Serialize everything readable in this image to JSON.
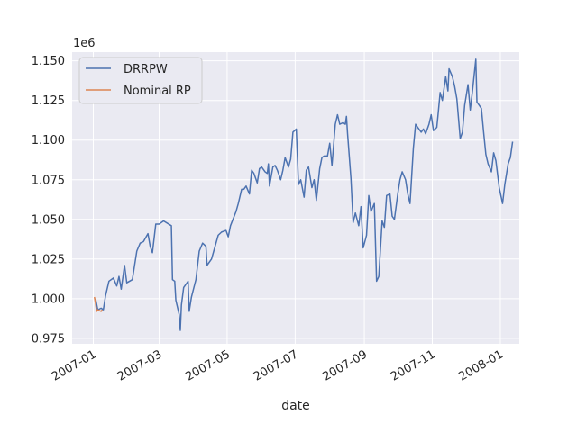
{
  "chart_data": {
    "type": "line",
    "title": "",
    "xlabel": "date",
    "ylabel": "",
    "y_offset_label": "1e6",
    "x_ticks": [
      "2007-01",
      "2007-03",
      "2007-05",
      "2007-07",
      "2007-09",
      "2007-11",
      "2008-01"
    ],
    "y_ticks": [
      "0.975",
      "1.000",
      "1.025",
      "1.050",
      "1.075",
      "1.100",
      "1.125",
      "1.150"
    ],
    "xlim": [
      "2006-12-13",
      "2008-01-18"
    ],
    "ylim": [
      0.9715,
      1.1555
    ],
    "grid": true,
    "legend_position": "top-left",
    "series": [
      {
        "name": "DRRPW",
        "color": "#4c72b0",
        "points": [
          [
            "2007-01-03",
            1.0
          ],
          [
            "2007-01-05",
            0.993
          ],
          [
            "2007-01-08",
            0.994
          ],
          [
            "2007-01-10",
            0.993
          ],
          [
            "2007-01-12",
            1.002
          ],
          [
            "2007-01-15",
            1.011
          ],
          [
            "2007-01-19",
            1.013
          ],
          [
            "2007-01-22",
            1.008
          ],
          [
            "2007-01-24",
            1.014
          ],
          [
            "2007-01-26",
            1.006
          ],
          [
            "2007-01-29",
            1.021
          ],
          [
            "2007-01-31",
            1.01
          ],
          [
            "2007-02-05",
            1.012
          ],
          [
            "2007-02-09",
            1.03
          ],
          [
            "2007-02-12",
            1.035
          ],
          [
            "2007-02-15",
            1.036
          ],
          [
            "2007-02-19",
            1.041
          ],
          [
            "2007-02-21",
            1.033
          ],
          [
            "2007-02-23",
            1.029
          ],
          [
            "2007-02-26",
            1.047
          ],
          [
            "2007-03-01",
            1.047
          ],
          [
            "2007-03-05",
            1.049
          ],
          [
            "2007-03-12",
            1.046
          ],
          [
            "2007-03-13",
            1.012
          ],
          [
            "2007-03-15",
            1.011
          ],
          [
            "2007-03-16",
            0.999
          ],
          [
            "2007-03-19",
            0.99
          ],
          [
            "2007-03-20",
            0.98
          ],
          [
            "2007-03-21",
            0.996
          ],
          [
            "2007-03-23",
            1.007
          ],
          [
            "2007-03-27",
            1.011
          ],
          [
            "2007-03-28",
            0.992
          ],
          [
            "2007-03-30",
            1.001
          ],
          [
            "2007-04-03",
            1.012
          ],
          [
            "2007-04-06",
            1.03
          ],
          [
            "2007-04-09",
            1.035
          ],
          [
            "2007-04-12",
            1.033
          ],
          [
            "2007-04-13",
            1.021
          ],
          [
            "2007-04-17",
            1.025
          ],
          [
            "2007-04-19",
            1.03
          ],
          [
            "2007-04-23",
            1.04
          ],
          [
            "2007-04-26",
            1.042
          ],
          [
            "2007-04-30",
            1.043
          ],
          [
            "2007-05-02",
            1.039
          ],
          [
            "2007-05-04",
            1.046
          ],
          [
            "2007-05-09",
            1.055
          ],
          [
            "2007-05-11",
            1.06
          ],
          [
            "2007-05-14",
            1.069
          ],
          [
            "2007-05-16",
            1.069
          ],
          [
            "2007-05-18",
            1.071
          ],
          [
            "2007-05-21",
            1.066
          ],
          [
            "2007-05-23",
            1.081
          ],
          [
            "2007-05-25",
            1.079
          ],
          [
            "2007-05-28",
            1.073
          ],
          [
            "2007-05-30",
            1.082
          ],
          [
            "2007-06-01",
            1.083
          ],
          [
            "2007-06-04",
            1.08
          ],
          [
            "2007-06-06",
            1.079
          ],
          [
            "2007-06-07",
            1.085
          ],
          [
            "2007-06-08",
            1.071
          ],
          [
            "2007-06-11",
            1.083
          ],
          [
            "2007-06-13",
            1.084
          ],
          [
            "2007-06-15",
            1.081
          ],
          [
            "2007-06-18",
            1.075
          ],
          [
            "2007-06-20",
            1.081
          ],
          [
            "2007-06-22",
            1.089
          ],
          [
            "2007-06-25",
            1.083
          ],
          [
            "2007-06-27",
            1.088
          ],
          [
            "2007-06-29",
            1.105
          ],
          [
            "2007-07-02",
            1.107
          ],
          [
            "2007-07-04",
            1.072
          ],
          [
            "2007-07-06",
            1.075
          ],
          [
            "2007-07-09",
            1.064
          ],
          [
            "2007-07-11",
            1.081
          ],
          [
            "2007-07-13",
            1.083
          ],
          [
            "2007-07-16",
            1.07
          ],
          [
            "2007-07-18",
            1.075
          ],
          [
            "2007-07-20",
            1.062
          ],
          [
            "2007-07-23",
            1.082
          ],
          [
            "2007-07-25",
            1.089
          ],
          [
            "2007-07-27",
            1.09
          ],
          [
            "2007-07-30",
            1.09
          ],
          [
            "2007-08-01",
            1.098
          ],
          [
            "2007-08-03",
            1.084
          ],
          [
            "2007-08-06",
            1.11
          ],
          [
            "2007-08-08",
            1.116
          ],
          [
            "2007-08-10",
            1.11
          ],
          [
            "2007-08-13",
            1.111
          ],
          [
            "2007-08-15",
            1.11
          ],
          [
            "2007-08-16",
            1.115
          ],
          [
            "2007-08-17",
            1.104
          ],
          [
            "2007-08-20",
            1.076
          ],
          [
            "2007-08-22",
            1.048
          ],
          [
            "2007-08-24",
            1.054
          ],
          [
            "2007-08-27",
            1.046
          ],
          [
            "2007-08-29",
            1.058
          ],
          [
            "2007-08-31",
            1.032
          ],
          [
            "2007-09-03",
            1.04
          ],
          [
            "2007-09-05",
            1.065
          ],
          [
            "2007-09-07",
            1.055
          ],
          [
            "2007-09-10",
            1.06
          ],
          [
            "2007-09-12",
            1.011
          ],
          [
            "2007-09-14",
            1.014
          ],
          [
            "2007-09-17",
            1.049
          ],
          [
            "2007-09-19",
            1.045
          ],
          [
            "2007-09-21",
            1.065
          ],
          [
            "2007-09-24",
            1.066
          ],
          [
            "2007-09-26",
            1.052
          ],
          [
            "2007-09-28",
            1.05
          ],
          [
            "2007-10-01",
            1.066
          ],
          [
            "2007-10-03",
            1.075
          ],
          [
            "2007-10-05",
            1.08
          ],
          [
            "2007-10-08",
            1.075
          ],
          [
            "2007-10-10",
            1.066
          ],
          [
            "2007-10-12",
            1.06
          ],
          [
            "2007-10-15",
            1.095
          ],
          [
            "2007-10-17",
            1.11
          ],
          [
            "2007-10-19",
            1.108
          ],
          [
            "2007-10-22",
            1.105
          ],
          [
            "2007-10-24",
            1.107
          ],
          [
            "2007-10-26",
            1.104
          ],
          [
            "2007-10-29",
            1.11
          ],
          [
            "2007-10-31",
            1.116
          ],
          [
            "2007-11-02",
            1.106
          ],
          [
            "2007-11-05",
            1.108
          ],
          [
            "2007-11-06",
            1.115
          ],
          [
            "2007-11-08",
            1.13
          ],
          [
            "2007-11-10",
            1.125
          ],
          [
            "2007-11-13",
            1.14
          ],
          [
            "2007-11-15",
            1.131
          ],
          [
            "2007-11-16",
            1.145
          ],
          [
            "2007-11-19",
            1.14
          ],
          [
            "2007-11-21",
            1.134
          ],
          [
            "2007-11-23",
            1.126
          ],
          [
            "2007-11-26",
            1.101
          ],
          [
            "2007-11-28",
            1.105
          ],
          [
            "2007-11-30",
            1.122
          ],
          [
            "2007-12-03",
            1.135
          ],
          [
            "2007-12-05",
            1.119
          ],
          [
            "2007-12-07",
            1.131
          ],
          [
            "2007-12-10",
            1.151
          ],
          [
            "2007-12-11",
            1.124
          ],
          [
            "2007-12-13",
            1.122
          ],
          [
            "2007-12-15",
            1.12
          ],
          [
            "2007-12-17",
            1.105
          ],
          [
            "2007-12-19",
            1.091
          ],
          [
            "2007-12-21",
            1.085
          ],
          [
            "2007-12-24",
            1.08
          ],
          [
            "2007-12-26",
            1.092
          ],
          [
            "2007-12-28",
            1.087
          ],
          [
            "2007-12-31",
            1.07
          ],
          [
            "2008-01-03",
            1.06
          ],
          [
            "2008-01-05",
            1.072
          ],
          [
            "2008-01-08",
            1.085
          ],
          [
            "2008-01-10",
            1.089
          ],
          [
            "2008-01-12",
            1.099
          ]
        ]
      },
      {
        "name": "Nominal RP",
        "color": "#dd8452",
        "points": [
          [
            "2007-01-02",
            1.001
          ],
          [
            "2007-01-03",
            0.997
          ],
          [
            "2007-01-04",
            0.992
          ],
          [
            "2007-01-05",
            0.993
          ],
          [
            "2007-01-08",
            0.992
          ],
          [
            "2007-01-09",
            0.993
          ]
        ]
      }
    ]
  }
}
